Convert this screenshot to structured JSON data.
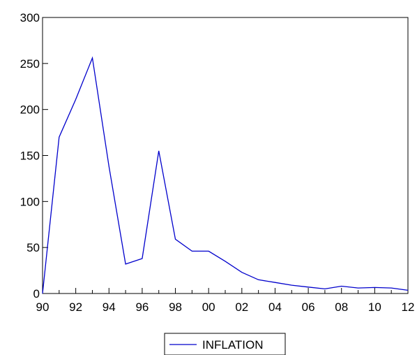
{
  "chart_data": {
    "type": "line",
    "title": "",
    "xlabel": "",
    "ylabel": "",
    "x": [
      1990,
      1991,
      1992,
      1993,
      1994,
      1995,
      1996,
      1997,
      1998,
      1999,
      2000,
      2001,
      2002,
      2003,
      2004,
      2005,
      2006,
      2007,
      2008,
      2009,
      2010,
      2011,
      2012
    ],
    "x_tick_values": [
      1990,
      1992,
      1994,
      1996,
      1998,
      2000,
      2002,
      2004,
      2006,
      2008,
      2010,
      2012
    ],
    "x_tick_labels": [
      "90",
      "92",
      "94",
      "96",
      "98",
      "00",
      "02",
      "04",
      "06",
      "08",
      "10",
      "12"
    ],
    "y_ticks": [
      0,
      50,
      100,
      150,
      200,
      250,
      300
    ],
    "y_tick_labels": [
      "0",
      "50",
      "100",
      "150",
      "200",
      "250",
      "300"
    ],
    "xlim": [
      1990,
      2012
    ],
    "ylim": [
      0,
      300
    ],
    "grid": false,
    "legend_position": "bottom-center",
    "series": [
      {
        "name": "INFLATION",
        "color": "#0000cc",
        "values": [
          0,
          170,
          211,
          256,
          138,
          32,
          38,
          155,
          59,
          46,
          46,
          35,
          23,
          15,
          12,
          9,
          7,
          5,
          8,
          6,
          6.5,
          6,
          3.5
        ]
      }
    ]
  }
}
